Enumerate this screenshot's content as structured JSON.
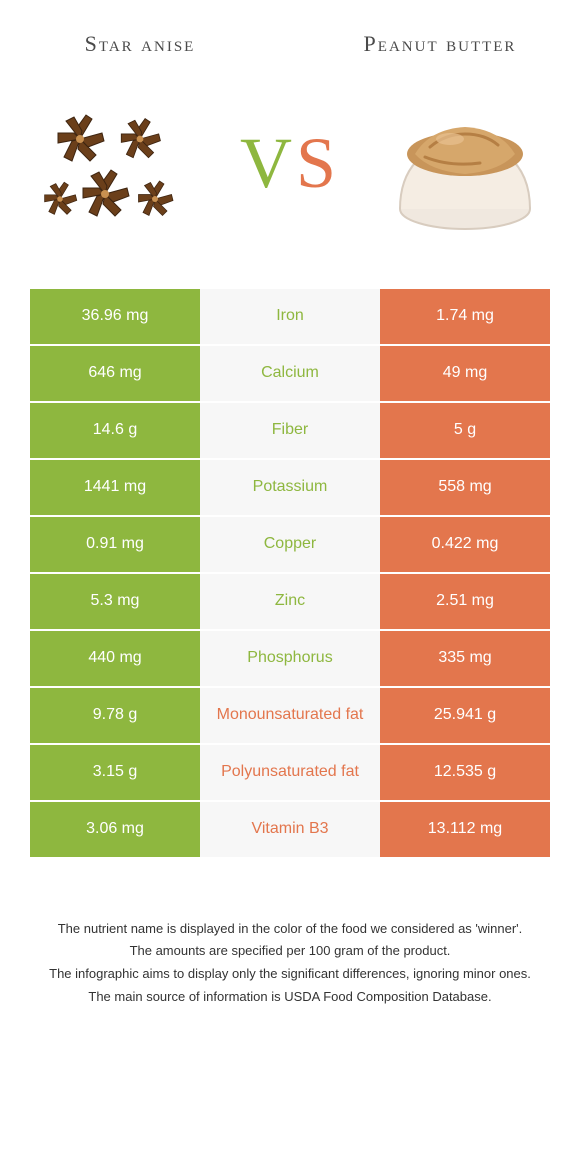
{
  "colors": {
    "left": "#8eb73f",
    "right": "#e3764d",
    "mid_bg": "#f7f7f7",
    "title_left": "#4a4a4a",
    "title_right": "#4a4a4a",
    "vs_v": "#8eb73f",
    "vs_s": "#e3764d"
  },
  "foods": {
    "left": {
      "title": "Star anise"
    },
    "right": {
      "title": "Peanut butter"
    }
  },
  "vs": {
    "v": "V",
    "s": "S"
  },
  "rows": [
    {
      "left": "36.96 mg",
      "label": "Iron",
      "right": "1.74 mg",
      "winner": "left"
    },
    {
      "left": "646 mg",
      "label": "Calcium",
      "right": "49 mg",
      "winner": "left"
    },
    {
      "left": "14.6 g",
      "label": "Fiber",
      "right": "5 g",
      "winner": "left"
    },
    {
      "left": "1441 mg",
      "label": "Potassium",
      "right": "558 mg",
      "winner": "left"
    },
    {
      "left": "0.91 mg",
      "label": "Copper",
      "right": "0.422 mg",
      "winner": "left"
    },
    {
      "left": "5.3 mg",
      "label": "Zinc",
      "right": "2.51 mg",
      "winner": "left"
    },
    {
      "left": "440 mg",
      "label": "Phosphorus",
      "right": "335 mg",
      "winner": "left"
    },
    {
      "left": "9.78 g",
      "label": "Monounsaturated fat",
      "right": "25.941 g",
      "winner": "right"
    },
    {
      "left": "3.15 g",
      "label": "Polyunsaturated fat",
      "right": "12.535 g",
      "winner": "right"
    },
    {
      "left": "3.06 mg",
      "label": "Vitamin B3",
      "right": "13.112 mg",
      "winner": "right"
    }
  ],
  "footnotes": [
    "The nutrient name is displayed in the color of the food we considered as 'winner'.",
    "The amounts are specified per 100 gram of the product.",
    "The infographic aims to display only the significant differences, ignoring minor ones.",
    "The main source of information is USDA Food Composition Database."
  ]
}
